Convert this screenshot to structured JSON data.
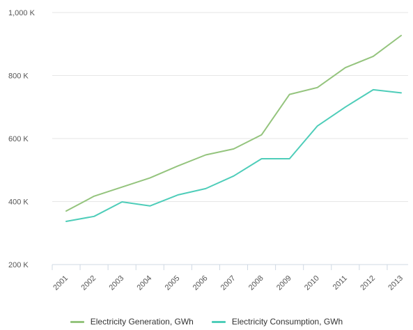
{
  "chart_data": {
    "type": "line",
    "categories": [
      "2001",
      "2002",
      "2003",
      "2004",
      "2005",
      "2006",
      "2007",
      "2008",
      "2009",
      "2010",
      "2011",
      "2012",
      "2013"
    ],
    "series": [
      {
        "name": "Electricity Generation, GWh",
        "color": "#94c47d",
        "values": [
          370,
          417,
          446,
          475,
          513,
          548,
          567,
          612,
          740,
          762,
          825,
          861,
          927
        ]
      },
      {
        "name": "Electricity Consumption, GWh",
        "color": "#4ecdb9",
        "values": [
          337,
          353,
          399,
          386,
          421,
          441,
          481,
          536,
          536,
          640,
          700,
          755,
          745
        ]
      }
    ],
    "ylim": [
      200,
      1000
    ],
    "yticks": [
      {
        "value": 200,
        "label": "200 K"
      },
      {
        "value": 400,
        "label": "400 K"
      },
      {
        "value": 600,
        "label": "600 K"
      },
      {
        "value": 800,
        "label": "800 K"
      },
      {
        "value": 1000,
        "label": "1,000 K"
      }
    ],
    "grid": true,
    "legend": "bottom"
  }
}
